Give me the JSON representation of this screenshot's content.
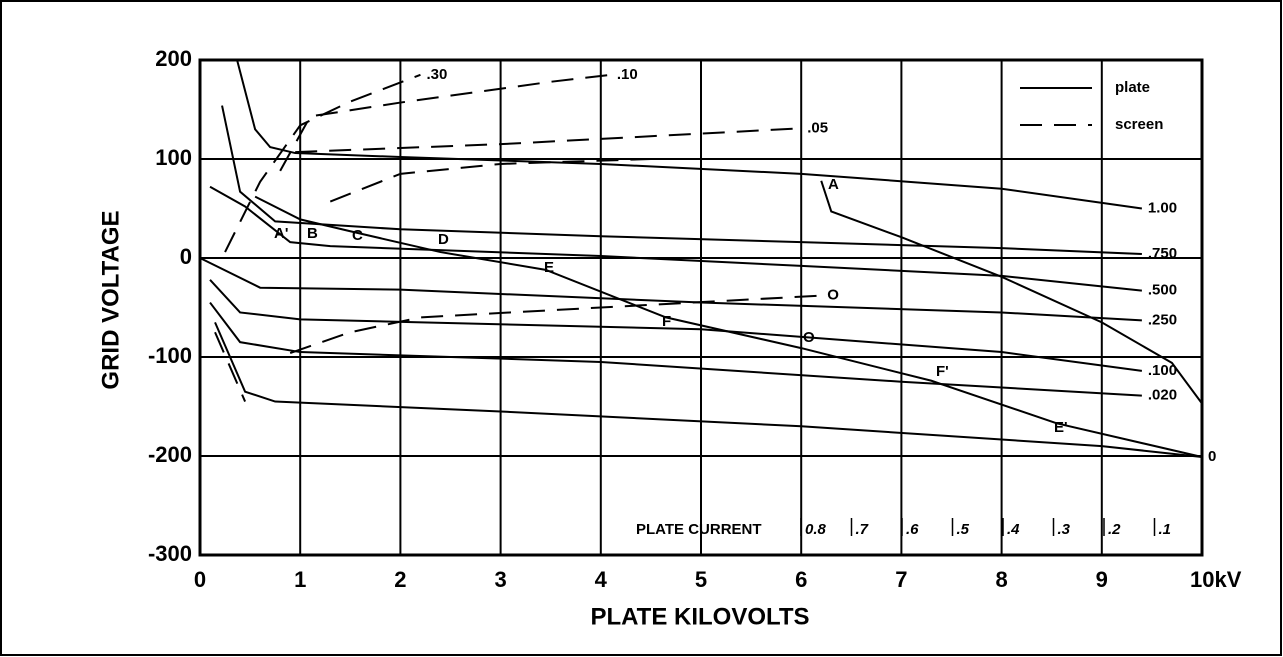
{
  "chart_data": {
    "type": "line",
    "xlabel": "PLATE KILOVOLTS",
    "ylabel": "GRID VOLTAGE",
    "xlim": [
      0,
      10
    ],
    "ylim": [
      -300,
      200
    ],
    "xticks": [
      0,
      1,
      2,
      3,
      4,
      5,
      6,
      7,
      8,
      9,
      {
        "value": 10,
        "label": "10kV"
      }
    ],
    "yticks": [
      -300,
      -200,
      -100,
      0,
      100,
      200
    ],
    "grid": true,
    "color": "#000000",
    "legend_position": "upper right",
    "legend": [
      {
        "name": "plate",
        "style": "solid"
      },
      {
        "name": "screen",
        "style": "dashed"
      }
    ],
    "series": [
      {
        "name": "1.00",
        "style": "solid",
        "x": [
          0.37,
          0.55,
          0.7,
          0.95,
          2,
          4,
          6,
          8,
          9.4
        ],
        "values": [
          200,
          130,
          112,
          106,
          102,
          95,
          85,
          70,
          50
        ]
      },
      {
        "name": ".750",
        "style": "solid",
        "x": [
          0.22,
          0.4,
          0.75,
          2,
          4,
          6,
          8,
          9.4
        ],
        "values": [
          154,
          67,
          37,
          29,
          22,
          16,
          10,
          4
        ]
      },
      {
        "name": ".500",
        "style": "solid",
        "x": [
          0.1,
          0.45,
          0.9,
          1.3,
          4,
          6,
          8,
          9.4
        ],
        "values": [
          72,
          52,
          16,
          12,
          2,
          -8,
          -18,
          -33
        ]
      },
      {
        "name": ".250",
        "style": "solid",
        "x": [
          0,
          0.6,
          2,
          5,
          8,
          9.4
        ],
        "values": [
          0,
          -30,
          -32,
          -45,
          -55,
          -63
        ]
      },
      {
        "name": ".100",
        "style": "solid",
        "x": [
          0.1,
          0.4,
          1,
          5,
          8,
          9.4
        ],
        "values": [
          -22,
          -55,
          -62,
          -72,
          -95,
          -114
        ]
      },
      {
        "name": ".020",
        "style": "solid",
        "x": [
          0.1,
          0.4,
          1,
          4,
          7,
          9.4
        ],
        "values": [
          -45,
          -85,
          -95,
          -105,
          -125,
          -139
        ]
      },
      {
        "name": "0",
        "style": "solid",
        "x": [
          0.15,
          0.45,
          0.75,
          3,
          6,
          9,
          10
        ],
        "values": [
          -65,
          -135,
          -145,
          -155,
          -170,
          -190,
          -201
        ]
      },
      {
        "style": "solid",
        "x": [
          0.55,
          1,
          1.5,
          2.4,
          3.45,
          4.65,
          6,
          7.3,
          8.55,
          10
        ],
        "values": [
          62,
          39,
          27,
          6,
          -12,
          -60,
          -91,
          -124,
          -167,
          -201
        ]
      },
      {
        "style": "solid",
        "x": [
          6.2,
          6.3,
          7,
          8,
          9,
          9.7,
          10
        ],
        "values": [
          78,
          47,
          21,
          -19,
          -65,
          -106,
          -147
        ]
      },
      {
        "name": ".30",
        "style": "dashed",
        "x": [
          0.25,
          0.6,
          1,
          1.5,
          2.2
        ],
        "values": [
          6,
          77,
          134,
          158,
          185
        ]
      },
      {
        "name": ".10",
        "style": "dashed",
        "x": [
          0.8,
          1.1,
          2,
          3.5,
          4.1
        ],
        "values": [
          88,
          143,
          157,
          178,
          185
        ]
      },
      {
        "name": ".05",
        "style": "dashed",
        "x": [
          0.95,
          3,
          6
        ],
        "values": [
          107,
          115,
          131
        ]
      },
      {
        "style": "dashed",
        "x": [
          1.3,
          2,
          3,
          4.5
        ],
        "values": [
          57,
          85,
          95,
          100
        ]
      },
      {
        "name": "O",
        "style": "dashed",
        "x": [
          0.9,
          1.5,
          2.2,
          4,
          6.2
        ],
        "values": [
          -96,
          -75,
          -60,
          -50,
          -38
        ]
      },
      {
        "style": "dashed",
        "x": [
          0.15,
          0.45
        ],
        "values": [
          -75,
          -145
        ]
      }
    ],
    "annotations": [
      "A",
      "A'",
      "B",
      "C",
      "D",
      "E",
      "F",
      "O",
      "F'",
      "E'"
    ],
    "plate_current": {
      "label": "PLATE CURRENT",
      "values": [
        0.8,
        0.7,
        0.6,
        0.5,
        0.4,
        0.3,
        0.2,
        0.1
      ],
      "value_labels": [
        "0.8",
        ".7",
        ".6",
        ".5",
        ".4",
        ".3",
        ".2",
        ".1"
      ]
    }
  }
}
